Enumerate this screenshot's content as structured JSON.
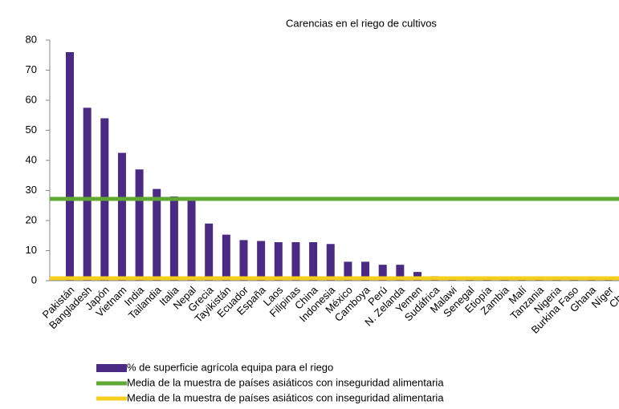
{
  "chart_data": {
    "type": "bar",
    "title": "Carencias en el riego de cultivos",
    "categories": [
      "Pakistán",
      "Bangladesh",
      "Japón",
      "Vietnam",
      "India",
      "Tailandia",
      "Italia",
      "Nepal",
      "Grecia",
      "Tayikistán",
      "Ecuador",
      "España",
      "Laos",
      "Filipinas",
      "China",
      "Indonesia",
      "México",
      "Camboya",
      "Perú",
      "N. Zelanda",
      "Yemen",
      "Sudáfrica",
      "Malawi",
      "Senegal",
      "Etiopía",
      "Zambia",
      "Malí",
      "Tanzania",
      "Nigeria",
      "Burkina Faso",
      "Ghana",
      "Níger",
      "Chad"
    ],
    "series": [
      {
        "name": "% de superficie agrícola equipa para el riego",
        "color": "#4b2a84",
        "values": [
          76,
          57.5,
          54,
          42.5,
          37,
          30.5,
          28,
          27,
          19,
          15.3,
          13.5,
          13.2,
          12.8,
          12.8,
          12.8,
          12.2,
          6.3,
          6.3,
          5.3,
          5.3,
          2.9,
          1.5,
          1.0,
          0.9,
          0.6,
          0.5,
          0.5,
          0.3,
          0.3,
          0.3,
          0.3,
          0.2,
          0.2
        ]
      }
    ],
    "reference_lines": [
      {
        "name": "Media de la muestra de países asiáticos con inseguridad alimentaria",
        "color": "#5fa833",
        "value": 27.2
      },
      {
        "name": "Media de la muestra de países asiáticos con inseguridad alimentaria",
        "color": "#f5cf1d",
        "value": 0.8
      }
    ],
    "ylim": [
      0,
      80
    ],
    "yticks": [
      0,
      10,
      20,
      30,
      40,
      50,
      60,
      70,
      80
    ]
  }
}
